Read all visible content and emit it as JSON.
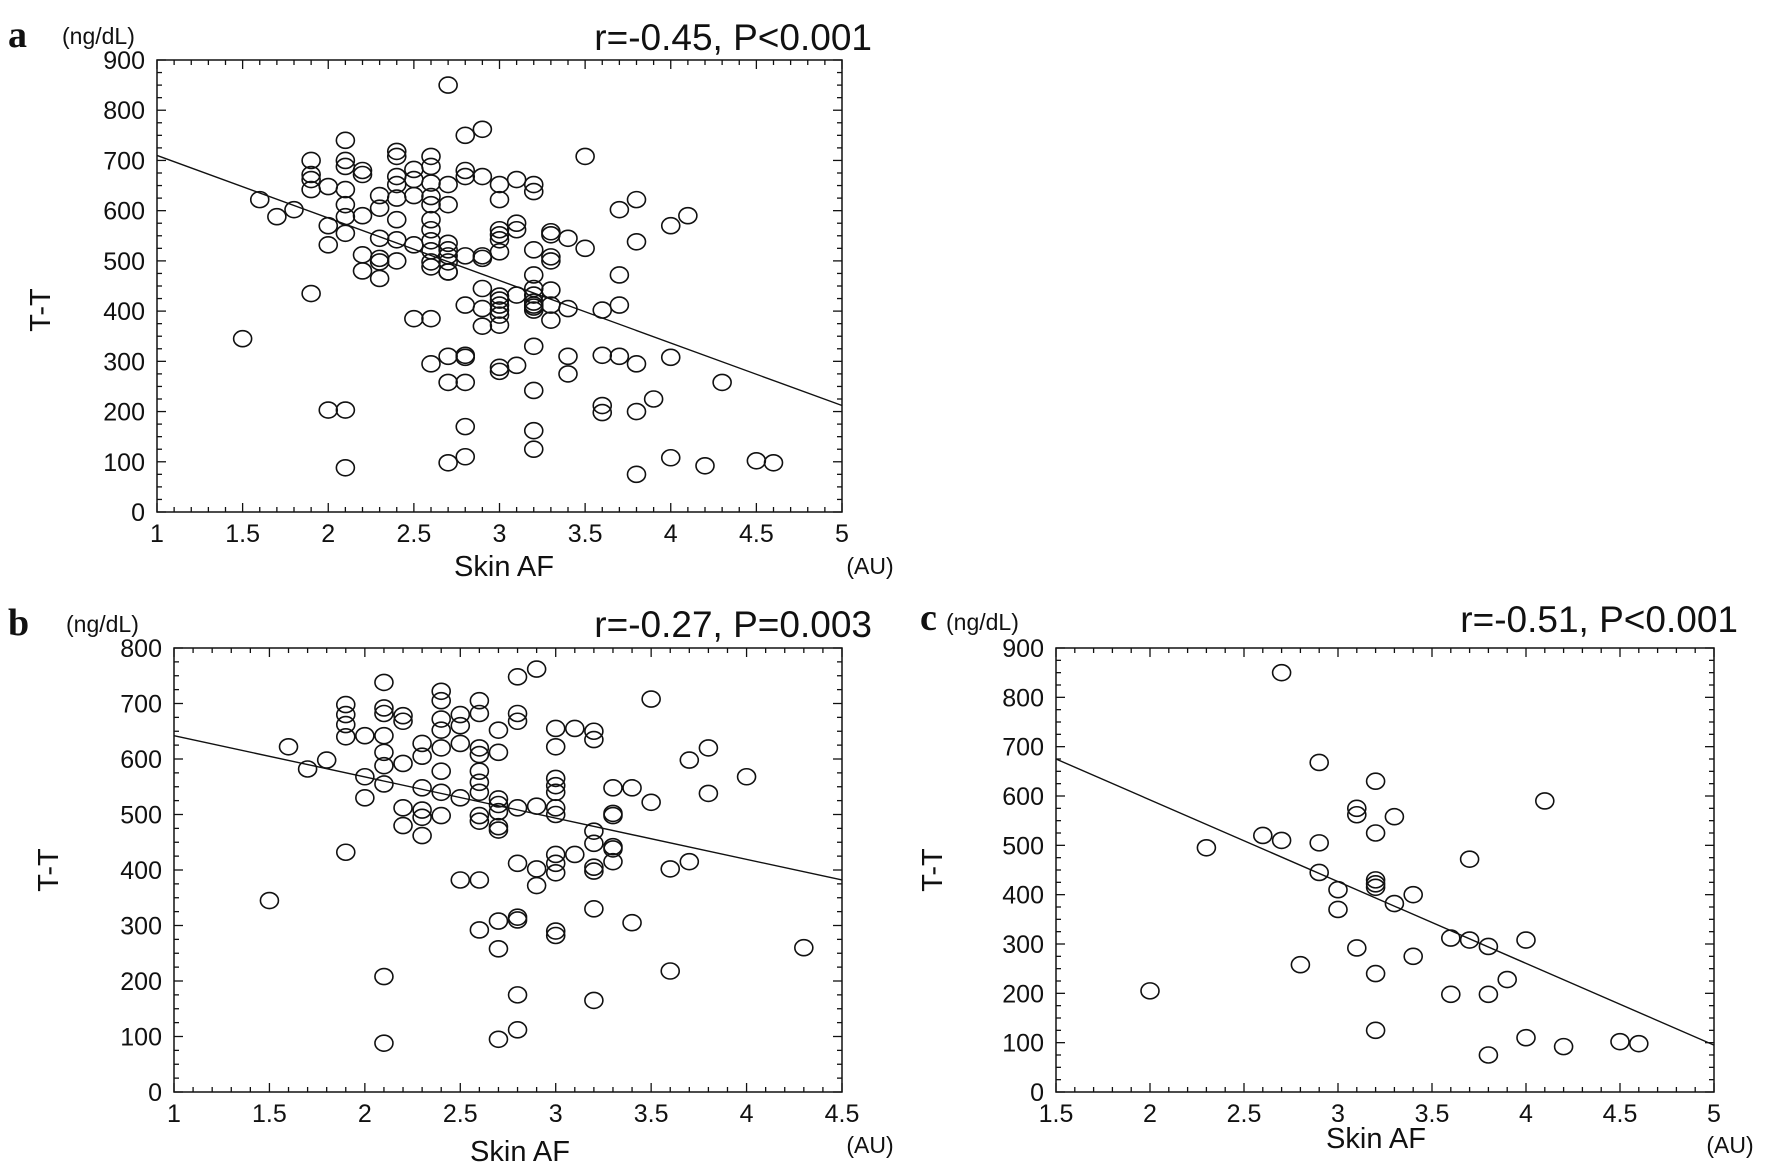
{
  "chart_data": [
    {
      "panel": "a",
      "type": "scatter",
      "stat": "r=-0.45, P<0.001",
      "xlabel": "Skin AF",
      "xunit": "(AU)",
      "ylabel": "T-T",
      "yunit": "(ng/dL)",
      "xlim": [
        1,
        5
      ],
      "ylim": [
        0,
        900
      ],
      "xticks": [
        1,
        1.5,
        2,
        2.5,
        3,
        3.5,
        4,
        4.5,
        5
      ],
      "xtick_labels": [
        "1",
        "1.5",
        "2",
        "2.5",
        "3",
        "3.5",
        "4",
        "4.5",
        "5"
      ],
      "yticks": [
        0,
        100,
        200,
        300,
        400,
        500,
        600,
        700,
        800,
        900
      ],
      "ytick_labels": [
        "0",
        "100",
        "200",
        "300",
        "400",
        "500",
        "600",
        "700",
        "800",
        "900"
      ],
      "regression_line": [
        [
          1,
          710
        ],
        [
          5,
          212
        ]
      ],
      "points": [
        [
          1.5,
          345
        ],
        [
          1.6,
          622
        ],
        [
          1.7,
          588
        ],
        [
          1.8,
          602
        ],
        [
          1.9,
          700
        ],
        [
          1.9,
          672
        ],
        [
          1.9,
          662
        ],
        [
          1.9,
          642
        ],
        [
          1.9,
          435
        ],
        [
          2.0,
          648
        ],
        [
          2.0,
          570
        ],
        [
          2.0,
          532
        ],
        [
          2.0,
          203
        ],
        [
          2.1,
          740
        ],
        [
          2.1,
          700
        ],
        [
          2.1,
          688
        ],
        [
          2.1,
          642
        ],
        [
          2.1,
          612
        ],
        [
          2.1,
          588
        ],
        [
          2.1,
          555
        ],
        [
          2.1,
          203
        ],
        [
          2.1,
          88
        ],
        [
          2.2,
          680
        ],
        [
          2.2,
          672
        ],
        [
          2.2,
          590
        ],
        [
          2.2,
          512
        ],
        [
          2.2,
          480
        ],
        [
          2.3,
          630
        ],
        [
          2.3,
          605
        ],
        [
          2.3,
          545
        ],
        [
          2.3,
          505
        ],
        [
          2.3,
          498
        ],
        [
          2.3,
          465
        ],
        [
          2.4,
          718
        ],
        [
          2.4,
          708
        ],
        [
          2.4,
          668
        ],
        [
          2.4,
          652
        ],
        [
          2.4,
          625
        ],
        [
          2.4,
          582
        ],
        [
          2.4,
          542
        ],
        [
          2.4,
          500
        ],
        [
          2.5,
          682
        ],
        [
          2.5,
          662
        ],
        [
          2.5,
          630
        ],
        [
          2.5,
          532
        ],
        [
          2.5,
          385
        ],
        [
          2.6,
          708
        ],
        [
          2.6,
          688
        ],
        [
          2.6,
          655
        ],
        [
          2.6,
          628
        ],
        [
          2.6,
          612
        ],
        [
          2.6,
          582
        ],
        [
          2.6,
          562
        ],
        [
          2.6,
          540
        ],
        [
          2.6,
          520
        ],
        [
          2.6,
          498
        ],
        [
          2.6,
          488
        ],
        [
          2.6,
          385
        ],
        [
          2.6,
          295
        ],
        [
          2.7,
          850
        ],
        [
          2.7,
          652
        ],
        [
          2.7,
          612
        ],
        [
          2.7,
          535
        ],
        [
          2.7,
          522
        ],
        [
          2.7,
          510
        ],
        [
          2.7,
          498
        ],
        [
          2.7,
          478
        ],
        [
          2.7,
          478
        ],
        [
          2.7,
          310
        ],
        [
          2.7,
          258
        ],
        [
          2.7,
          98
        ],
        [
          2.8,
          750
        ],
        [
          2.8,
          680
        ],
        [
          2.8,
          668
        ],
        [
          2.8,
          510
        ],
        [
          2.8,
          412
        ],
        [
          2.8,
          312
        ],
        [
          2.8,
          308
        ],
        [
          2.8,
          258
        ],
        [
          2.8,
          170
        ],
        [
          2.8,
          110
        ],
        [
          2.9,
          762
        ],
        [
          2.9,
          668
        ],
        [
          2.9,
          510
        ],
        [
          2.9,
          505
        ],
        [
          2.9,
          445
        ],
        [
          2.9,
          405
        ],
        [
          2.9,
          370
        ],
        [
          3.0,
          652
        ],
        [
          3.0,
          622
        ],
        [
          3.0,
          562
        ],
        [
          3.0,
          552
        ],
        [
          3.0,
          542
        ],
        [
          3.0,
          518
        ],
        [
          3.0,
          430
        ],
        [
          3.0,
          422
        ],
        [
          3.0,
          412
        ],
        [
          3.0,
          402
        ],
        [
          3.0,
          392
        ],
        [
          3.0,
          372
        ],
        [
          3.0,
          288
        ],
        [
          3.0,
          280
        ],
        [
          3.1,
          662
        ],
        [
          3.1,
          575
        ],
        [
          3.1,
          562
        ],
        [
          3.1,
          432
        ],
        [
          3.1,
          292
        ],
        [
          3.2,
          652
        ],
        [
          3.2,
          638
        ],
        [
          3.2,
          522
        ],
        [
          3.2,
          472
        ],
        [
          3.2,
          445
        ],
        [
          3.2,
          432
        ],
        [
          3.2,
          418
        ],
        [
          3.2,
          412
        ],
        [
          3.2,
          408
        ],
        [
          3.2,
          402
        ],
        [
          3.2,
          330
        ],
        [
          3.2,
          242
        ],
        [
          3.2,
          162
        ],
        [
          3.2,
          125
        ],
        [
          3.3,
          558
        ],
        [
          3.3,
          552
        ],
        [
          3.3,
          508
        ],
        [
          3.3,
          500
        ],
        [
          3.3,
          442
        ],
        [
          3.3,
          412
        ],
        [
          3.3,
          382
        ],
        [
          3.4,
          545
        ],
        [
          3.4,
          405
        ],
        [
          3.4,
          310
        ],
        [
          3.4,
          275
        ],
        [
          3.5,
          708
        ],
        [
          3.5,
          525
        ],
        [
          3.6,
          402
        ],
        [
          3.6,
          312
        ],
        [
          3.6,
          212
        ],
        [
          3.6,
          198
        ],
        [
          3.7,
          602
        ],
        [
          3.7,
          472
        ],
        [
          3.7,
          412
        ],
        [
          3.7,
          310
        ],
        [
          3.8,
          622
        ],
        [
          3.8,
          538
        ],
        [
          3.8,
          295
        ],
        [
          3.8,
          200
        ],
        [
          3.8,
          75
        ],
        [
          3.9,
          225
        ],
        [
          4.0,
          570
        ],
        [
          4.0,
          308
        ],
        [
          4.0,
          108
        ],
        [
          4.1,
          590
        ],
        [
          4.2,
          92
        ],
        [
          4.3,
          258
        ],
        [
          4.5,
          102
        ],
        [
          4.6,
          98
        ]
      ]
    },
    {
      "panel": "b",
      "type": "scatter",
      "stat": "r=-0.27, P=0.003",
      "xlabel": "Skin AF",
      "xunit": "(AU)",
      "ylabel": "T-T",
      "yunit": "(ng/dL)",
      "xlim": [
        1,
        4.5
      ],
      "ylim": [
        0,
        800
      ],
      "xticks": [
        1,
        1.5,
        2,
        2.5,
        3,
        3.5,
        4,
        4.5
      ],
      "xtick_labels": [
        "1",
        "1.5",
        "2",
        "2.5",
        "3",
        "3.5",
        "4",
        "4.5"
      ],
      "yticks": [
        0,
        100,
        200,
        300,
        400,
        500,
        600,
        700,
        800
      ],
      "ytick_labels": [
        "0",
        "100",
        "200",
        "300",
        "400",
        "500",
        "600",
        "700",
        "800"
      ],
      "regression_line": [
        [
          1,
          642
        ],
        [
          4.5,
          382
        ]
      ],
      "points": [
        [
          1.5,
          345
        ],
        [
          1.6,
          622
        ],
        [
          1.7,
          582
        ],
        [
          1.8,
          598
        ],
        [
          1.9,
          698
        ],
        [
          1.9,
          680
        ],
        [
          1.9,
          662
        ],
        [
          1.9,
          640
        ],
        [
          1.9,
          432
        ],
        [
          2.0,
          642
        ],
        [
          2.0,
          568
        ],
        [
          2.0,
          530
        ],
        [
          2.1,
          738
        ],
        [
          2.1,
          692
        ],
        [
          2.1,
          682
        ],
        [
          2.1,
          642
        ],
        [
          2.1,
          612
        ],
        [
          2.1,
          588
        ],
        [
          2.1,
          555
        ],
        [
          2.1,
          208
        ],
        [
          2.1,
          88
        ],
        [
          2.2,
          678
        ],
        [
          2.2,
          668
        ],
        [
          2.2,
          592
        ],
        [
          2.2,
          512
        ],
        [
          2.2,
          480
        ],
        [
          2.3,
          628
        ],
        [
          2.3,
          605
        ],
        [
          2.3,
          548
        ],
        [
          2.3,
          508
        ],
        [
          2.3,
          495
        ],
        [
          2.3,
          462
        ],
        [
          2.4,
          722
        ],
        [
          2.4,
          705
        ],
        [
          2.4,
          672
        ],
        [
          2.4,
          652
        ],
        [
          2.4,
          620
        ],
        [
          2.4,
          578
        ],
        [
          2.4,
          540
        ],
        [
          2.4,
          498
        ],
        [
          2.5,
          680
        ],
        [
          2.5,
          660
        ],
        [
          2.5,
          628
        ],
        [
          2.5,
          530
        ],
        [
          2.5,
          382
        ],
        [
          2.6,
          705
        ],
        [
          2.6,
          682
        ],
        [
          2.6,
          620
        ],
        [
          2.6,
          608
        ],
        [
          2.6,
          578
        ],
        [
          2.6,
          558
        ],
        [
          2.6,
          540
        ],
        [
          2.6,
          498
        ],
        [
          2.6,
          488
        ],
        [
          2.6,
          382
        ],
        [
          2.6,
          292
        ],
        [
          2.7,
          652
        ],
        [
          2.7,
          612
        ],
        [
          2.7,
          528
        ],
        [
          2.7,
          518
        ],
        [
          2.7,
          505
        ],
        [
          2.7,
          478
        ],
        [
          2.7,
          472
        ],
        [
          2.7,
          308
        ],
        [
          2.7,
          258
        ],
        [
          2.7,
          95
        ],
        [
          2.8,
          748
        ],
        [
          2.8,
          682
        ],
        [
          2.8,
          668
        ],
        [
          2.8,
          512
        ],
        [
          2.8,
          412
        ],
        [
          2.8,
          315
        ],
        [
          2.8,
          310
        ],
        [
          2.8,
          175
        ],
        [
          2.8,
          112
        ],
        [
          2.9,
          762
        ],
        [
          2.9,
          515
        ],
        [
          2.9,
          402
        ],
        [
          2.9,
          372
        ],
        [
          3.0,
          655
        ],
        [
          3.0,
          622
        ],
        [
          3.0,
          565
        ],
        [
          3.0,
          552
        ],
        [
          3.0,
          540
        ],
        [
          3.0,
          512
        ],
        [
          3.0,
          500
        ],
        [
          3.0,
          428
        ],
        [
          3.0,
          412
        ],
        [
          3.0,
          395
        ],
        [
          3.0,
          290
        ],
        [
          3.0,
          282
        ],
        [
          3.1,
          655
        ],
        [
          3.1,
          428
        ],
        [
          3.2,
          650
        ],
        [
          3.2,
          635
        ],
        [
          3.2,
          470
        ],
        [
          3.2,
          448
        ],
        [
          3.2,
          405
        ],
        [
          3.2,
          398
        ],
        [
          3.2,
          330
        ],
        [
          3.2,
          165
        ],
        [
          3.3,
          548
        ],
        [
          3.3,
          502
        ],
        [
          3.3,
          498
        ],
        [
          3.3,
          442
        ],
        [
          3.3,
          438
        ],
        [
          3.3,
          415
        ],
        [
          3.4,
          548
        ],
        [
          3.4,
          305
        ],
        [
          3.5,
          708
        ],
        [
          3.5,
          522
        ],
        [
          3.6,
          402
        ],
        [
          3.6,
          218
        ],
        [
          3.7,
          598
        ],
        [
          3.7,
          415
        ],
        [
          3.8,
          620
        ],
        [
          3.8,
          538
        ],
        [
          4.0,
          568
        ],
        [
          4.3,
          260
        ]
      ]
    },
    {
      "panel": "c",
      "type": "scatter",
      "stat": "r=-0.51, P<0.001",
      "xlabel": "Skin AF",
      "xunit": "(AU)",
      "ylabel": "T-T",
      "yunit": "(ng/dL)",
      "xlim": [
        1.5,
        5
      ],
      "ylim": [
        0,
        900
      ],
      "xticks": [
        1.5,
        2,
        2.5,
        3,
        3.5,
        4,
        4.5,
        5
      ],
      "xtick_labels": [
        "1.5",
        "2",
        "2.5",
        "3",
        "3.5",
        "4",
        "4.5",
        "5"
      ],
      "yticks": [
        0,
        100,
        200,
        300,
        400,
        500,
        600,
        700,
        800,
        900
      ],
      "ytick_labels": [
        "0",
        "100",
        "200",
        "300",
        "400",
        "500",
        "600",
        "700",
        "800",
        "900"
      ],
      "regression_line": [
        [
          1.5,
          675
        ],
        [
          5,
          95
        ]
      ],
      "points": [
        [
          2.0,
          205
        ],
        [
          2.3,
          495
        ],
        [
          2.6,
          520
        ],
        [
          2.7,
          510
        ],
        [
          2.7,
          850
        ],
        [
          2.8,
          258
        ],
        [
          2.9,
          668
        ],
        [
          2.9,
          505
        ],
        [
          2.9,
          445
        ],
        [
          3.0,
          410
        ],
        [
          3.0,
          370
        ],
        [
          3.1,
          575
        ],
        [
          3.1,
          562
        ],
        [
          3.1,
          292
        ],
        [
          3.2,
          630
        ],
        [
          3.2,
          525
        ],
        [
          3.2,
          430
        ],
        [
          3.2,
          422
        ],
        [
          3.2,
          415
        ],
        [
          3.2,
          240
        ],
        [
          3.2,
          125
        ],
        [
          3.3,
          558
        ],
        [
          3.3,
          382
        ],
        [
          3.4,
          400
        ],
        [
          3.4,
          275
        ],
        [
          3.6,
          312
        ],
        [
          3.6,
          198
        ],
        [
          3.7,
          472
        ],
        [
          3.7,
          308
        ],
        [
          3.8,
          295
        ],
        [
          3.8,
          198
        ],
        [
          3.8,
          75
        ],
        [
          3.9,
          228
        ],
        [
          4.0,
          308
        ],
        [
          4.0,
          110
        ],
        [
          4.1,
          590
        ],
        [
          4.2,
          92
        ],
        [
          4.5,
          102
        ],
        [
          4.6,
          98
        ]
      ]
    }
  ]
}
